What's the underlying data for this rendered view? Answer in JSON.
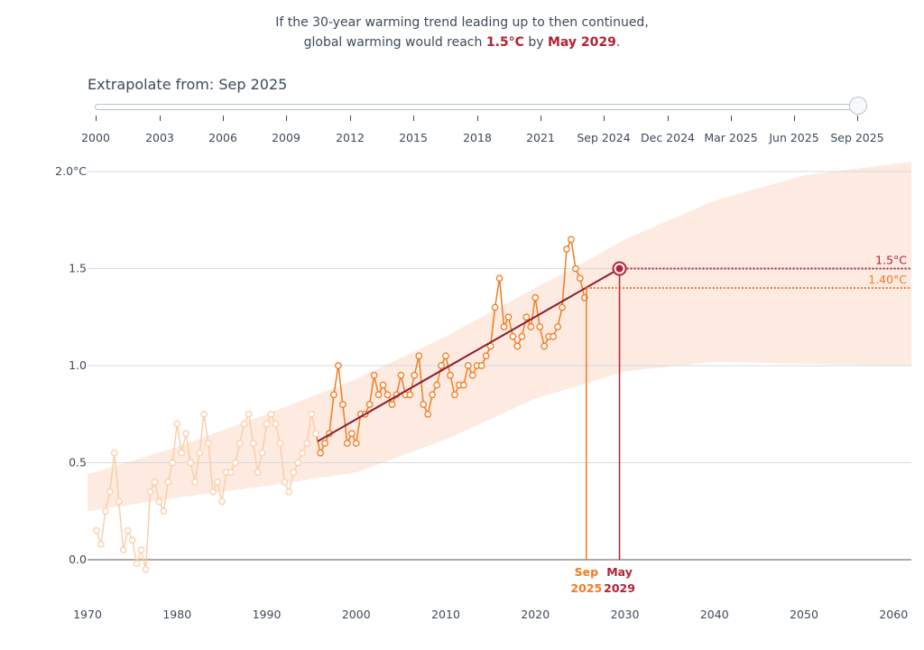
{
  "headline": {
    "line1": "If the 30-year warming trend leading up to then continued,",
    "line2_pre": "global warming would reach ",
    "value": "1.5°C",
    "mid": " by ",
    "date": "May 2029",
    "end": "."
  },
  "slider": {
    "label": "Extrapolate from: Sep 2025",
    "ticks": [
      "2000",
      "2003",
      "2006",
      "2009",
      "2012",
      "2015",
      "2018",
      "2021",
      "Sep 2024",
      "Dec 2024",
      "Mar 2025",
      "Jun 2025",
      "Sep 2025"
    ],
    "value": "Sep 2025",
    "position": 1.0
  },
  "chart_data": {
    "type": "scatter",
    "x_ticks": [
      "1970",
      "1980",
      "1990",
      "2000",
      "2010",
      "2020",
      "2030",
      "2040",
      "2050",
      "2060"
    ],
    "y_ticks": [
      "2.0°C",
      "1.5",
      "1.0",
      "0.5",
      "0.0"
    ],
    "xlim": [
      1970,
      2062
    ],
    "ylim": [
      -0.2,
      2.0
    ],
    "grid": "horizontal",
    "colors": {
      "observed": "#f47b20",
      "observed_faded": "#fbcfa8",
      "trend": "#8b1e2f",
      "target": "#b22234",
      "band": "#fde6dc"
    },
    "observations": {
      "x_start": 1971,
      "step": 0.5,
      "faded_before": 1995.7,
      "values": [
        0.15,
        0.08,
        0.25,
        0.35,
        0.55,
        0.3,
        0.05,
        0.15,
        0.1,
        -0.02,
        0.05,
        -0.05,
        0.35,
        0.4,
        0.3,
        0.25,
        0.4,
        0.5,
        0.7,
        0.55,
        0.65,
        0.5,
        0.4,
        0.55,
        0.75,
        0.6,
        0.35,
        0.4,
        0.3,
        0.45,
        0.45,
        0.5,
        0.6,
        0.7,
        0.75,
        0.6,
        0.45,
        0.55,
        0.7,
        0.75,
        0.7,
        0.6,
        0.4,
        0.35,
        0.45,
        0.5,
        0.55,
        0.6,
        0.75,
        0.65,
        0.55,
        0.6,
        0.65,
        0.85,
        1.0,
        0.8,
        0.6,
        0.65,
        0.6,
        0.75,
        0.75,
        0.8,
        0.95,
        0.85,
        0.9,
        0.85,
        0.8,
        0.85,
        0.95,
        0.85,
        0.85,
        0.95,
        1.05,
        0.8,
        0.75,
        0.85,
        0.9,
        1.0,
        1.05,
        0.95,
        0.85,
        0.9,
        0.9,
        1.0,
        0.95,
        1.0,
        1.0,
        1.05,
        1.1,
        1.3,
        1.45,
        1.2,
        1.25,
        1.15,
        1.1,
        1.15,
        1.25,
        1.2,
        1.35,
        1.2,
        1.1,
        1.15,
        1.15,
        1.2,
        1.3,
        1.6,
        1.65,
        1.5,
        1.45,
        1.35
      ]
    },
    "trend": {
      "from": [
        1995.7,
        0.61
      ],
      "to": [
        2029.4,
        1.5
      ]
    },
    "band": {
      "x": [
        1970,
        1980,
        1990,
        2000,
        2010,
        2020,
        2025,
        2030,
        2040,
        2050,
        2062
      ],
      "upper": [
        0.44,
        0.58,
        0.75,
        0.93,
        1.15,
        1.4,
        1.52,
        1.65,
        1.85,
        1.98,
        2.05
      ],
      "lower": [
        0.25,
        0.32,
        0.38,
        0.45,
        0.62,
        0.83,
        0.9,
        0.97,
        1.02,
        1.01,
        1.0
      ]
    },
    "target_line": {
      "value": 1.5,
      "label": "1.5°C"
    },
    "current_line": {
      "value": 1.4,
      "label": "1.40°C"
    },
    "markers": [
      {
        "x": 2025.7,
        "label1": "Sep",
        "label2": "2025",
        "color": "#f47b20"
      },
      {
        "x": 2029.4,
        "label1": "May",
        "label2": "2029",
        "color": "#b22234"
      }
    ]
  }
}
